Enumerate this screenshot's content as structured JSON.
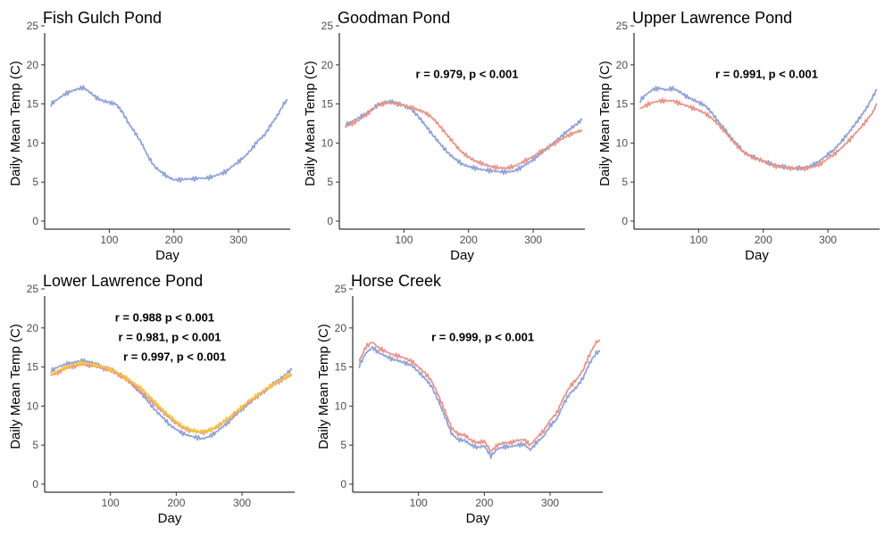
{
  "figure": {
    "ylabel": "Daily Mean Temp (C)",
    "xlabel": "Day"
  },
  "colors": {
    "blue": "#8fa3d6",
    "red": "#e8958a",
    "yellow": "#f5c542"
  },
  "chart_data": [
    {
      "type": "line",
      "title": "Fish Gulch Pond",
      "xlabel": "Day",
      "ylabel": "Daily Mean Temp (C)",
      "xlim": [
        0,
        380
      ],
      "ylim": [
        0,
        25
      ],
      "xticks": [
        100,
        200,
        300
      ],
      "yticks": [
        0,
        5,
        10,
        15,
        20,
        25
      ],
      "annotations": [],
      "series": [
        {
          "color": "blue",
          "x": [
            10,
            20,
            30,
            40,
            50,
            60,
            70,
            80,
            90,
            100,
            110,
            120,
            130,
            140,
            150,
            160,
            170,
            180,
            190,
            200,
            210,
            220,
            230,
            240,
            250,
            260,
            270,
            280,
            290,
            300,
            310,
            320,
            330,
            340,
            350,
            360,
            370,
            375
          ],
          "y": [
            15,
            15.6,
            16.2,
            16.6,
            16.9,
            17.1,
            16.5,
            15.8,
            15.4,
            15.2,
            15.0,
            14.0,
            12.5,
            11.3,
            10.0,
            8.3,
            7.0,
            6.3,
            5.7,
            5.3,
            5.3,
            5.4,
            5.4,
            5.5,
            5.5,
            5.7,
            6.0,
            6.3,
            7.0,
            7.6,
            8.3,
            9.2,
            10.3,
            11.0,
            12.3,
            13.5,
            15.0,
            15.5
          ]
        }
      ]
    },
    {
      "type": "line",
      "title": "Goodman Pond",
      "xlabel": "Day",
      "ylabel": "Daily Mean Temp (C)",
      "xlim": [
        0,
        380
      ],
      "ylim": [
        0,
        25
      ],
      "xticks": [
        100,
        200,
        300
      ],
      "yticks": [
        0,
        5,
        10,
        15,
        20,
        25
      ],
      "annotations": [
        "r = 0.979, p < 0.001"
      ],
      "series": [
        {
          "color": "blue",
          "x": [
            10,
            20,
            30,
            40,
            50,
            60,
            70,
            80,
            90,
            100,
            110,
            120,
            130,
            140,
            150,
            160,
            170,
            180,
            190,
            200,
            210,
            220,
            230,
            240,
            250,
            260,
            270,
            280,
            290,
            300,
            310,
            320,
            330,
            340,
            350,
            360,
            370,
            375
          ],
          "y": [
            12.3,
            12.8,
            13.2,
            13.7,
            14.3,
            14.9,
            15.2,
            15.3,
            15.1,
            14.8,
            14.4,
            13.6,
            12.6,
            11.5,
            10.5,
            9.5,
            8.6,
            7.9,
            7.3,
            7.0,
            6.8,
            6.6,
            6.5,
            6.4,
            6.3,
            6.3,
            6.4,
            6.8,
            7.3,
            7.9,
            8.5,
            9.2,
            9.9,
            10.6,
            11.3,
            12.0,
            12.6,
            13.0
          ]
        },
        {
          "color": "red",
          "x": [
            10,
            20,
            30,
            40,
            50,
            60,
            70,
            80,
            90,
            100,
            110,
            120,
            130,
            140,
            150,
            160,
            170,
            180,
            190,
            200,
            210,
            220,
            230,
            240,
            250,
            260,
            270,
            280,
            290,
            300,
            310,
            320,
            330,
            340,
            350,
            360,
            370,
            375
          ],
          "y": [
            12.1,
            12.5,
            12.9,
            13.5,
            14.2,
            14.8,
            15.1,
            15.1,
            15.0,
            14.8,
            14.6,
            14.3,
            14.0,
            13.5,
            12.7,
            11.7,
            10.7,
            9.7,
            8.8,
            8.2,
            7.7,
            7.4,
            7.1,
            6.9,
            6.8,
            6.8,
            7.0,
            7.4,
            7.8,
            8.3,
            8.8,
            9.3,
            9.8,
            10.3,
            10.8,
            11.2,
            11.5,
            11.6
          ]
        }
      ]
    },
    {
      "type": "line",
      "title": "Upper Lawrence Pond",
      "xlabel": "Day",
      "ylabel": "Daily Mean Temp (C)",
      "xlim": [
        0,
        380
      ],
      "ylim": [
        0,
        25
      ],
      "xticks": [
        100,
        200,
        300
      ],
      "yticks": [
        0,
        5,
        10,
        15,
        20,
        25
      ],
      "annotations": [
        "r = 0.991, p < 0.001"
      ],
      "series": [
        {
          "color": "blue",
          "x": [
            10,
            20,
            30,
            40,
            50,
            60,
            70,
            80,
            90,
            100,
            110,
            120,
            130,
            140,
            150,
            160,
            170,
            180,
            190,
            200,
            210,
            220,
            230,
            240,
            250,
            260,
            270,
            280,
            290,
            300,
            310,
            320,
            330,
            340,
            350,
            360,
            370,
            375
          ],
          "y": [
            15.5,
            16.3,
            16.9,
            17.0,
            16.8,
            17.0,
            16.6,
            16.0,
            15.6,
            15.2,
            14.8,
            13.9,
            12.8,
            11.8,
            10.7,
            9.8,
            8.8,
            8.4,
            8.0,
            7.7,
            7.4,
            7.2,
            7.0,
            6.8,
            6.8,
            6.8,
            7.0,
            7.3,
            7.9,
            8.5,
            9.2,
            10.1,
            11.1,
            12.2,
            13.3,
            14.5,
            16.0,
            16.8
          ]
        },
        {
          "color": "red",
          "x": [
            10,
            20,
            30,
            40,
            50,
            60,
            70,
            80,
            90,
            100,
            110,
            120,
            130,
            140,
            150,
            160,
            170,
            180,
            190,
            200,
            210,
            220,
            230,
            240,
            250,
            260,
            270,
            280,
            290,
            300,
            310,
            320,
            330,
            340,
            350,
            360,
            370,
            375
          ],
          "y": [
            14.4,
            14.9,
            15.2,
            15.4,
            15.4,
            15.4,
            15.1,
            14.8,
            14.5,
            14.2,
            13.8,
            13.2,
            12.4,
            11.5,
            10.5,
            9.6,
            8.8,
            8.3,
            8.0,
            7.7,
            7.3,
            7.0,
            6.9,
            6.8,
            6.7,
            6.7,
            6.8,
            7.0,
            7.4,
            8.0,
            8.6,
            9.3,
            10.1,
            11.0,
            11.9,
            12.9,
            14.0,
            15.0
          ]
        }
      ]
    },
    {
      "type": "line",
      "title": "Lower Lawrence Pond",
      "xlabel": "Day",
      "ylabel": "Daily Mean Temp (C)",
      "xlim": [
        0,
        380
      ],
      "ylim": [
        0,
        25
      ],
      "xticks": [
        100,
        200,
        300
      ],
      "yticks": [
        0,
        5,
        10,
        15,
        20,
        25
      ],
      "annotations": [
        "r = 0.988 p < 0.001",
        "r = 0.981, p < 0.001",
        "r = 0.997, p < 0.001"
      ],
      "series": [
        {
          "color": "blue",
          "x": [
            10,
            20,
            30,
            40,
            50,
            60,
            70,
            80,
            90,
            100,
            110,
            120,
            130,
            140,
            150,
            160,
            170,
            180,
            190,
            200,
            210,
            220,
            230,
            240,
            250,
            260,
            270,
            280,
            290,
            300,
            310,
            320,
            330,
            340,
            350,
            360,
            370,
            375
          ],
          "y": [
            14.5,
            15.0,
            15.3,
            15.5,
            15.7,
            15.8,
            15.6,
            15.3,
            15.0,
            14.7,
            14.3,
            13.8,
            13.0,
            12.2,
            11.3,
            10.3,
            9.3,
            8.5,
            7.6,
            7.0,
            6.5,
            6.2,
            6.0,
            5.8,
            6.1,
            6.6,
            7.3,
            8.0,
            8.8,
            9.6,
            10.3,
            11.0,
            11.7,
            12.3,
            13.0,
            13.6,
            14.3,
            14.7
          ]
        },
        {
          "color": "red",
          "x": [
            10,
            20,
            30,
            40,
            50,
            60,
            70,
            80,
            90,
            100,
            110,
            120,
            130,
            140,
            150,
            160,
            170,
            180,
            190,
            200,
            210,
            220,
            230,
            240,
            250,
            260,
            270,
            280,
            290,
            300,
            310,
            320,
            330,
            340,
            350,
            360,
            370,
            375
          ],
          "y": [
            13.9,
            14.3,
            14.7,
            15.0,
            15.2,
            15.3,
            15.2,
            15.0,
            14.8,
            14.5,
            14.1,
            13.6,
            13.0,
            12.3,
            11.6,
            10.8,
            10.0,
            9.2,
            8.5,
            7.8,
            7.2,
            6.9,
            6.7,
            6.6,
            6.8,
            7.2,
            7.8,
            8.4,
            9.1,
            9.8,
            10.5,
            11.1,
            11.7,
            12.3,
            12.8,
            13.3,
            13.8,
            14.0
          ]
        },
        {
          "color": "yellow",
          "x": [
            10,
            20,
            30,
            40,
            50,
            60,
            70,
            80,
            90,
            100,
            110,
            120,
            130,
            140,
            150,
            160,
            170,
            180,
            190,
            200,
            210,
            220,
            230,
            240,
            250,
            260,
            270,
            280,
            290,
            300,
            310,
            320,
            330,
            340,
            350,
            360,
            370,
            375
          ],
          "y": [
            14.0,
            14.5,
            14.9,
            15.2,
            15.4,
            15.5,
            15.4,
            15.2,
            15.0,
            14.7,
            14.3,
            13.8,
            13.3,
            12.7,
            12.0,
            11.2,
            10.3,
            9.5,
            8.7,
            8.0,
            7.4,
            7.0,
            6.8,
            6.7,
            6.9,
            7.3,
            7.9,
            8.5,
            9.2,
            9.9,
            10.6,
            11.2,
            11.8,
            12.4,
            12.9,
            13.4,
            13.9,
            14.1
          ]
        }
      ]
    },
    {
      "type": "line",
      "title": "Horse Creek",
      "xlabel": "Day",
      "ylabel": "Daily Mean Temp (C)",
      "xlim": [
        0,
        380
      ],
      "ylim": [
        0,
        25
      ],
      "xticks": [
        100,
        200,
        300
      ],
      "yticks": [
        0,
        5,
        10,
        15,
        20,
        25
      ],
      "annotations": [
        "r = 0.999, p < 0.001"
      ],
      "series": [
        {
          "color": "blue",
          "x": [
            10,
            20,
            30,
            40,
            50,
            60,
            70,
            80,
            90,
            100,
            110,
            120,
            130,
            140,
            150,
            160,
            170,
            180,
            190,
            200,
            210,
            220,
            230,
            240,
            250,
            260,
            270,
            280,
            290,
            300,
            310,
            320,
            330,
            340,
            350,
            360,
            370,
            375
          ],
          "y": [
            15.2,
            16.8,
            17.5,
            16.8,
            16.4,
            16.0,
            15.8,
            15.5,
            15.2,
            14.4,
            13.5,
            12.5,
            10.7,
            8.7,
            6.5,
            5.7,
            5.6,
            5.0,
            4.7,
            4.9,
            3.6,
            4.5,
            4.8,
            4.8,
            5.0,
            5.1,
            4.4,
            5.4,
            6.1,
            7.5,
            8.3,
            10.2,
            11.6,
            12.4,
            13.6,
            15.5,
            16.8,
            17.0
          ]
        },
        {
          "color": "red",
          "x": [
            10,
            20,
            30,
            40,
            50,
            60,
            70,
            80,
            90,
            100,
            110,
            120,
            130,
            140,
            150,
            160,
            170,
            180,
            190,
            200,
            210,
            220,
            230,
            240,
            250,
            260,
            270,
            280,
            290,
            300,
            310,
            320,
            330,
            340,
            350,
            360,
            370,
            375
          ],
          "y": [
            15.8,
            17.6,
            18.2,
            17.4,
            17.0,
            16.6,
            16.4,
            16.1,
            15.7,
            15.0,
            14.2,
            13.2,
            11.4,
            9.4,
            7.2,
            6.4,
            6.3,
            5.6,
            5.3,
            5.5,
            4.2,
            5.0,
            5.3,
            5.3,
            5.6,
            5.7,
            5.0,
            6.0,
            6.8,
            8.2,
            9.1,
            11.0,
            12.5,
            13.4,
            14.6,
            16.6,
            18.2,
            18.4
          ]
        }
      ]
    }
  ]
}
